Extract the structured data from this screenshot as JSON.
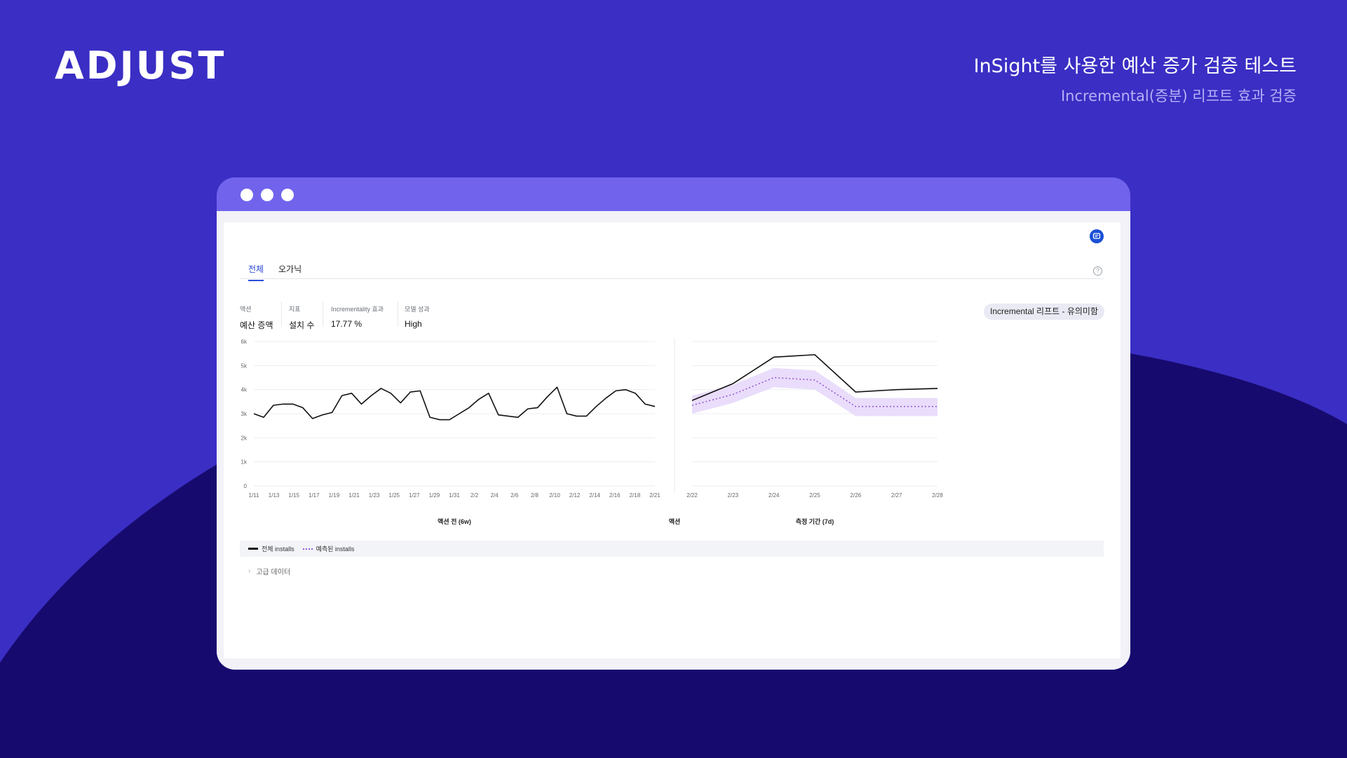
{
  "brand": {
    "logo_text": "ADJUST",
    "background_color": "#3a2ec4",
    "curve_color": "#170a6e"
  },
  "header": {
    "title": "InSight를 사용한 예산 증가 검증 테스트",
    "subtitle": "Incremental(증분) 리프트 효과 검증"
  },
  "tabs": [
    {
      "label": "전체",
      "active": true
    },
    {
      "label": "오가닉",
      "active": false
    }
  ],
  "metrics": [
    {
      "label": "액션",
      "value": "예산 증액"
    },
    {
      "label": "지표",
      "value": "설치 수"
    },
    {
      "label": "Incrementality 효과",
      "value": "17.77 %"
    },
    {
      "label": "모델 성과",
      "value": "High"
    }
  ],
  "badge": {
    "label": "Incremental 리프트 - 유의미함"
  },
  "icons": {
    "chat": "chat-icon",
    "help": "help-icon",
    "expand": "chevron-right-icon"
  },
  "legend": {
    "actual": "전체 installs",
    "predicted": "예측된 installs"
  },
  "advanced_data": {
    "label": "고급 데이터"
  },
  "chart_data": {
    "type": "line",
    "ylim": [
      0,
      6000
    ],
    "y_ticks": [
      0,
      1000,
      2000,
      3000,
      4000,
      5000,
      6000
    ],
    "y_tick_labels": [
      "0",
      "1k",
      "2k",
      "3k",
      "4k",
      "5k",
      "6k"
    ],
    "grid": true,
    "legend_placement": "bottom",
    "pre_period": {
      "label": "액션 전 (6w)",
      "tick_labels": [
        "1/11",
        "1/13",
        "1/15",
        "1/17",
        "1/19",
        "1/21",
        "1/23",
        "1/25",
        "1/27",
        "1/29",
        "1/31",
        "2/2",
        "2/4",
        "2/6",
        "2/8",
        "2/10",
        "2/12",
        "2/14",
        "2/16",
        "2/18",
        "2/21"
      ],
      "series": [
        {
          "name": "전체 installs",
          "values": [
            3000,
            2850,
            3350,
            3400,
            3400,
            3250,
            2800,
            2950,
            3050,
            3750,
            3850,
            3400,
            3750,
            4050,
            3850,
            3450,
            3900,
            3950,
            2850,
            2750,
            2750,
            3000,
            3250,
            3600,
            3850,
            2950,
            2900,
            2850,
            3200,
            3250,
            3700,
            4100,
            3000,
            2900,
            2900,
            3300,
            3650,
            3950,
            4000,
            3850,
            3400,
            3300
          ]
        }
      ]
    },
    "action_label": "액션",
    "post_period": {
      "label": "측정 기간 (7d)",
      "tick_labels": [
        "2/22",
        "2/23",
        "2/24",
        "2/25",
        "2/26",
        "2/27",
        "2/28"
      ],
      "series": [
        {
          "name": "전체 installs",
          "values": [
            3550,
            4250,
            5350,
            5450,
            3900,
            4000,
            4050
          ]
        },
        {
          "name": "예측된 installs",
          "values": [
            3350,
            3800,
            4500,
            4400,
            3300,
            3300,
            3300
          ]
        }
      ],
      "band_upper": [
        3750,
        4200,
        4900,
        4800,
        3650,
        3650,
        3650
      ],
      "band_lower": [
        3000,
        3450,
        4100,
        4000,
        2900,
        2900,
        2900
      ],
      "colors": {
        "actual": "#111111",
        "predicted": "#9b59d8",
        "band": "#e9ddfb"
      }
    }
  }
}
